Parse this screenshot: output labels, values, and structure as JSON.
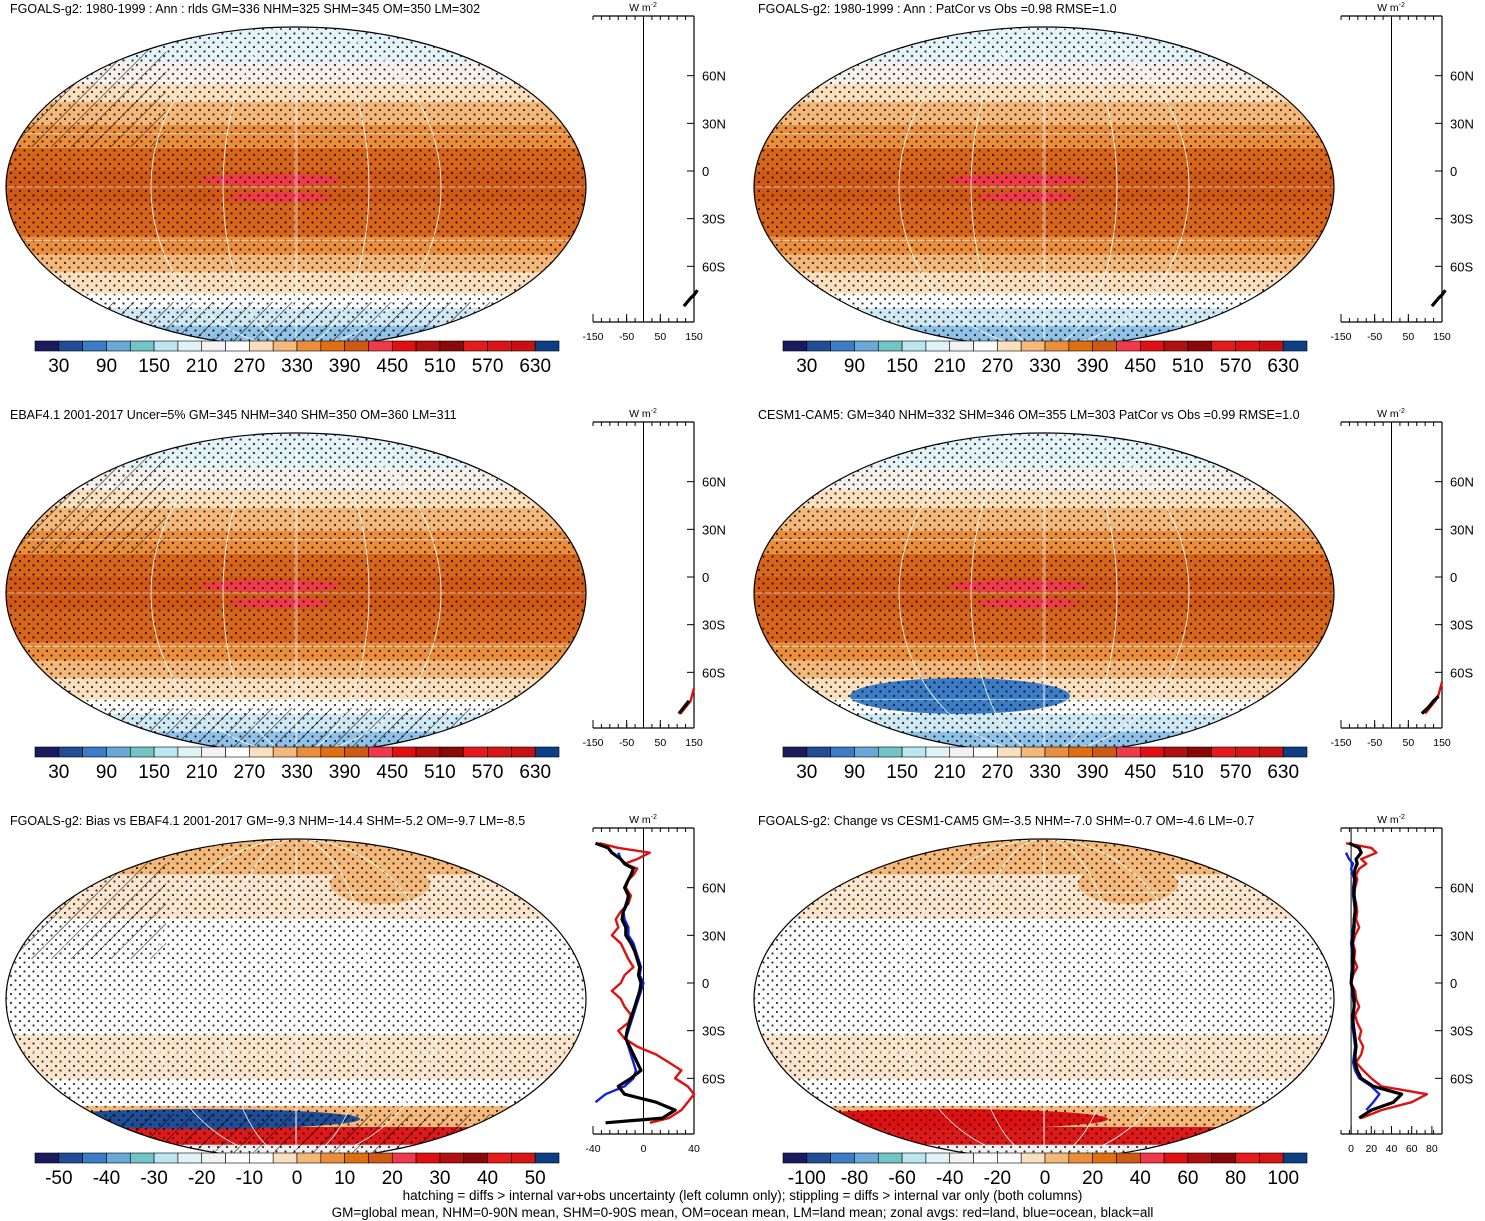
{
  "panels": [
    {
      "title": "FGOALS-g2: 1980-1999 : Ann : rlds GM=336 NHM=325 SHM=345 OM=350 LM=302",
      "colorbar_labels": [
        "30",
        "90",
        "150",
        "210",
        "270",
        "330",
        "390",
        "450",
        "510",
        "570",
        "630"
      ],
      "profile": {
        "unit": "W m",
        "exp": "-2",
        "x_ticks": [
          "-150",
          "-50",
          "50",
          "150"
        ]
      }
    },
    {
      "title": "FGOALS-g2: 1980-1999 : Ann : PatCor vs Obs =0.98 RMSE=1.0",
      "colorbar_labels": [
        "30",
        "90",
        "150",
        "210",
        "270",
        "330",
        "390",
        "450",
        "510",
        "570",
        "630"
      ],
      "profile": {
        "unit": "W m",
        "exp": "-2",
        "x_ticks": [
          "-150",
          "-50",
          "50",
          "150"
        ]
      }
    },
    {
      "title": "EBAF4.1 2001-2017 Uncer=5% GM=345 NHM=340 SHM=350 OM=360 LM=311",
      "colorbar_labels": [
        "30",
        "90",
        "150",
        "210",
        "270",
        "330",
        "390",
        "450",
        "510",
        "570",
        "630"
      ],
      "profile": {
        "unit": "W m",
        "exp": "-2",
        "x_ticks": [
          "-150",
          "-50",
          "50",
          "150"
        ]
      }
    },
    {
      "title": "CESM1-CAM5: GM=340 NHM=332 SHM=346 OM=355 LM=303 PatCor vs Obs =0.99 RMSE=1.0",
      "colorbar_labels": [
        "30",
        "90",
        "150",
        "210",
        "270",
        "330",
        "390",
        "450",
        "510",
        "570",
        "630"
      ],
      "profile": {
        "unit": "W m",
        "exp": "-2",
        "x_ticks": [
          "-150",
          "-50",
          "50",
          "150"
        ]
      }
    },
    {
      "title": "FGOALS-g2: Bias vs EBAF4.1 2001-2017 GM=-9.3 NHM=-14.4 SHM=-5.2 OM=-9.7 LM=-8.5",
      "colorbar_labels": [
        "-50",
        "-40",
        "-30",
        "-20",
        "-10",
        "0",
        "10",
        "20",
        "30",
        "40",
        "50"
      ],
      "profile": {
        "unit": "W m",
        "exp": "-2",
        "x_ticks": [
          "-40",
          "0",
          "40"
        ]
      }
    },
    {
      "title": "FGOALS-g2: Change vs CESM1-CAM5 GM=-3.5 NHM=-7.0 SHM=-0.7 OM=-4.6 LM=-0.7",
      "colorbar_labels": [
        "-100",
        "-80",
        "-60",
        "-40",
        "-20",
        "0",
        "20",
        "40",
        "60",
        "80",
        "100"
      ],
      "profile": {
        "unit": "W m",
        "exp": "-2",
        "x_ticks": [
          "0",
          "20",
          "40",
          "60",
          "80"
        ]
      }
    }
  ],
  "lat_labels": [
    "60N",
    "30N",
    "0",
    "30S",
    "60S"
  ],
  "footer": [
    "hatching = diffs > internal var+obs uncertainty (left column only); stippling = diffs > internal var only (both columns)",
    "GM=global mean, NHM=0-90N mean, SHM=0-90S mean, OM=ocean mean, LM=land mean; zonal avgs: red=land, blue=ocean, black=all"
  ],
  "colors": {
    "abs_scale": [
      "#1a1a5e",
      "#1f4e96",
      "#3a7cc6",
      "#6aa8da",
      "#70c6c6",
      "#b9e6ef",
      "#dff3f7",
      "#f3f3f3",
      "#ffffff",
      "#fbe0bf",
      "#f4b97a",
      "#eb8e3c",
      "#e06f10",
      "#d05a14",
      "#f0394a",
      "#e01010",
      "#b01010",
      "#8a0808",
      "#e51b1b",
      "#d71515",
      "#c81010",
      "#0d3f86"
    ],
    "diff_scale": [
      "#1a1a5e",
      "#1f4e96",
      "#3a7cc6",
      "#6aa8da",
      "#70c6c6",
      "#b9e6ef",
      "#dff3f7",
      "#f3f3f3",
      "#ffffff",
      "#ffffff",
      "#fbe0bf",
      "#f4b97a",
      "#eb8e3c",
      "#e06f10",
      "#d05a14",
      "#f0394a",
      "#e01010",
      "#b01010",
      "#8a0808",
      "#e51b1b",
      "#d71515",
      "#0d3f86"
    ],
    "land_line": "#e01010",
    "ocean_line": "#1020e0",
    "all_line": "#000000"
  },
  "chart_data": [
    {
      "type": "heatmap",
      "title": "FGOALS-g2: 1980-1999 : Ann : rlds GM=336 NHM=325 SHM=345 OM=350 LM=302",
      "colorbar": {
        "min": 0,
        "max": 660,
        "step": 30
      },
      "zonal_mean_profile": {
        "xlim": [
          -150,
          150
        ],
        "lat_ticks": [
          "60N",
          "30N",
          "0",
          "30S",
          "60S"
        ],
        "series": [
          {
            "name": "all",
            "lat": [
              -85,
              -80,
              -78,
              -75
            ],
            "values": [
              120,
              140,
              150,
              160
            ]
          }
        ]
      }
    },
    {
      "type": "heatmap",
      "title": "FGOALS-g2: 1980-1999 : Ann : PatCor vs Obs =0.98 RMSE=1.0",
      "colorbar": {
        "min": 0,
        "max": 660,
        "step": 30
      },
      "zonal_mean_profile": {
        "xlim": [
          -150,
          150
        ],
        "lat_ticks": [
          "60N",
          "30N",
          "0",
          "30S",
          "60S"
        ],
        "series": [
          {
            "name": "all",
            "lat": [
              -85,
              -80,
              -78,
              -75
            ],
            "values": [
              120,
              140,
              150,
              160
            ]
          }
        ]
      }
    },
    {
      "type": "heatmap",
      "title": "EBAF4.1 2001-2017 Uncer=5% GM=345 NHM=340 SHM=350 OM=360 LM=311",
      "colorbar": {
        "min": 0,
        "max": 660,
        "step": 30
      },
      "zonal_mean_profile": {
        "xlim": [
          -150,
          150
        ],
        "lat_ticks": [
          "60N",
          "30N",
          "0",
          "30S",
          "60S"
        ],
        "series": [
          {
            "name": "land",
            "lat": [
              -86,
              -82,
              -78,
              -74,
              -70
            ],
            "values": [
              110,
              125,
              140,
              145,
              150
            ]
          },
          {
            "name": "all",
            "lat": [
              -86,
              -82,
              -78
            ],
            "values": [
              105,
              120,
              135
            ]
          }
        ]
      }
    },
    {
      "type": "heatmap",
      "title": "CESM1-CAM5: GM=340 NHM=332 SHM=346 OM=355 LM=303 PatCor vs Obs =0.99 RMSE=1.0",
      "colorbar": {
        "min": 0,
        "max": 660,
        "step": 30
      },
      "zonal_mean_profile": {
        "xlim": [
          -150,
          150
        ],
        "lat_ticks": [
          "60N",
          "30N",
          "0",
          "30S",
          "60S"
        ],
        "series": [
          {
            "name": "land",
            "lat": [
              -86,
              -82,
              -78,
              -74,
              -70,
              -66
            ],
            "values": [
              100,
              115,
              130,
              140,
              145,
              150
            ]
          },
          {
            "name": "all",
            "lat": [
              -86,
              -82,
              -78,
              -75
            ],
            "values": [
              90,
              110,
              125,
              140
            ]
          }
        ]
      }
    },
    {
      "type": "heatmap",
      "title": "FGOALS-g2: Bias vs EBAF4.1 2001-2017 GM=-9.3 NHM=-14.4 SHM=-5.2 OM=-9.7 LM=-8.5",
      "colorbar": {
        "min": -55,
        "max": 55,
        "step": 5
      },
      "zonal_mean_profile": {
        "xlim": [
          -40,
          40
        ],
        "lat_ticks": [
          "60N",
          "30N",
          "0",
          "30S",
          "60S"
        ],
        "series": [
          {
            "name": "land",
            "lat": [
              88,
              85,
              82,
              78,
              75,
              72,
              68,
              65,
              60,
              55,
              50,
              45,
              40,
              35,
              30,
              25,
              20,
              15,
              10,
              5,
              0,
              -5,
              -10,
              -15,
              -20,
              -25,
              -30,
              -35,
              -40,
              -45,
              -50,
              -55,
              -60,
              -65,
              -70,
              -75,
              -80,
              -85,
              -88
            ],
            "values": [
              -35,
              -20,
              5,
              -5,
              -15,
              -5,
              -8,
              -12,
              -14,
              -10,
              -12,
              -18,
              -22,
              -20,
              -25,
              -18,
              -15,
              -12,
              -8,
              -15,
              -18,
              -25,
              -18,
              -15,
              -10,
              -12,
              -20,
              -15,
              -5,
              10,
              20,
              30,
              25,
              35,
              40,
              35,
              30,
              20,
              5
            ]
          },
          {
            "name": "ocean",
            "lat": [
              82,
              78,
              75,
              72,
              68,
              65,
              60,
              55,
              50,
              45,
              40,
              35,
              30,
              25,
              20,
              15,
              10,
              5,
              0,
              -5,
              -10,
              -15,
              -20,
              -25,
              -30,
              -35,
              -40,
              -45,
              -50,
              -55,
              -60,
              -65,
              -70,
              -75
            ],
            "values": [
              -20,
              -18,
              -14,
              -8,
              -10,
              -12,
              -15,
              -12,
              -14,
              -16,
              -15,
              -12,
              -12,
              -8,
              -6,
              -4,
              -2,
              -3,
              0,
              -2,
              -4,
              -6,
              -8,
              -10,
              -12,
              -14,
              -12,
              -10,
              -8,
              -6,
              -8,
              -15,
              -30,
              -38
            ]
          },
          {
            "name": "all",
            "lat": [
              88,
              85,
              82,
              78,
              75,
              72,
              68,
              65,
              60,
              55,
              50,
              45,
              40,
              35,
              30,
              25,
              20,
              15,
              10,
              5,
              0,
              -5,
              -10,
              -15,
              -20,
              -25,
              -30,
              -35,
              -40,
              -45,
              -50,
              -55,
              -60,
              -65,
              -70,
              -75,
              -80,
              -85,
              -88
            ],
            "values": [
              -38,
              -28,
              -25,
              -18,
              -15,
              -8,
              -10,
              -12,
              -15,
              -12,
              -13,
              -16,
              -17,
              -14,
              -14,
              -10,
              -7,
              -5,
              -3,
              -4,
              -2,
              -3,
              -5,
              -7,
              -9,
              -11,
              -13,
              -14,
              -11,
              -8,
              -5,
              -2,
              -10,
              -20,
              -15,
              10,
              25,
              15,
              -30
            ]
          }
        ]
      }
    },
    {
      "type": "heatmap",
      "title": "FGOALS-g2: Change vs CESM1-CAM5 GM=-3.5 NHM=-7.0 SHM=-0.7 OM=-4.6 LM=-0.7",
      "colorbar": {
        "min": -110,
        "max": 110,
        "step": 10
      },
      "zonal_mean_profile": {
        "xlim": [
          -10,
          90
        ],
        "lat_ticks": [
          "60N",
          "30N",
          "0",
          "30S",
          "60S"
        ],
        "series": [
          {
            "name": "land",
            "lat": [
              88,
              85,
              82,
              78,
              75,
              72,
              68,
              65,
              60,
              55,
              50,
              45,
              40,
              35,
              30,
              25,
              20,
              15,
              10,
              5,
              0,
              -5,
              -10,
              -15,
              -20,
              -25,
              -30,
              -35,
              -40,
              -45,
              -50,
              -55,
              -60,
              -65,
              -70,
              -75,
              -80,
              -85
            ],
            "values": [
              -5,
              20,
              25,
              10,
              15,
              8,
              5,
              6,
              4,
              3,
              5,
              6,
              5,
              8,
              4,
              2,
              4,
              3,
              6,
              2,
              0,
              4,
              5,
              8,
              4,
              6,
              10,
              8,
              12,
              10,
              5,
              12,
              20,
              30,
              75,
              60,
              30,
              10
            ]
          },
          {
            "name": "ocean",
            "lat": [
              82,
              78,
              75,
              72,
              68,
              65,
              60,
              55,
              50,
              45,
              40,
              35,
              30,
              25,
              20,
              15,
              10,
              5,
              0,
              -5,
              -10,
              -15,
              -20,
              -25,
              -30,
              -35,
              -40,
              -45,
              -50,
              -55,
              -60,
              -65,
              -70,
              -75,
              -80
            ],
            "values": [
              -5,
              -2,
              2,
              0,
              2,
              3,
              2,
              2,
              3,
              4,
              3,
              2,
              1,
              0,
              1,
              2,
              1,
              0,
              0,
              1,
              2,
              3,
              2,
              1,
              2,
              3,
              4,
              3,
              2,
              4,
              8,
              20,
              28,
              22,
              15
            ]
          },
          {
            "name": "all",
            "lat": [
              88,
              85,
              82,
              78,
              75,
              72,
              68,
              65,
              60,
              55,
              50,
              45,
              40,
              35,
              30,
              25,
              20,
              15,
              10,
              5,
              0,
              -5,
              -10,
              -15,
              -20,
              -25,
              -30,
              -35,
              -40,
              -45,
              -50,
              -55,
              -60,
              -65,
              -70,
              -75,
              -80,
              -85
            ],
            "values": [
              -2,
              8,
              10,
              5,
              6,
              4,
              3,
              4,
              3,
              3,
              4,
              4,
              3,
              3,
              2,
              1,
              2,
              2,
              2,
              1,
              0,
              2,
              3,
              3,
              2,
              2,
              3,
              4,
              5,
              4,
              4,
              6,
              10,
              22,
              50,
              42,
              20,
              8
            ]
          }
        ]
      }
    }
  ]
}
